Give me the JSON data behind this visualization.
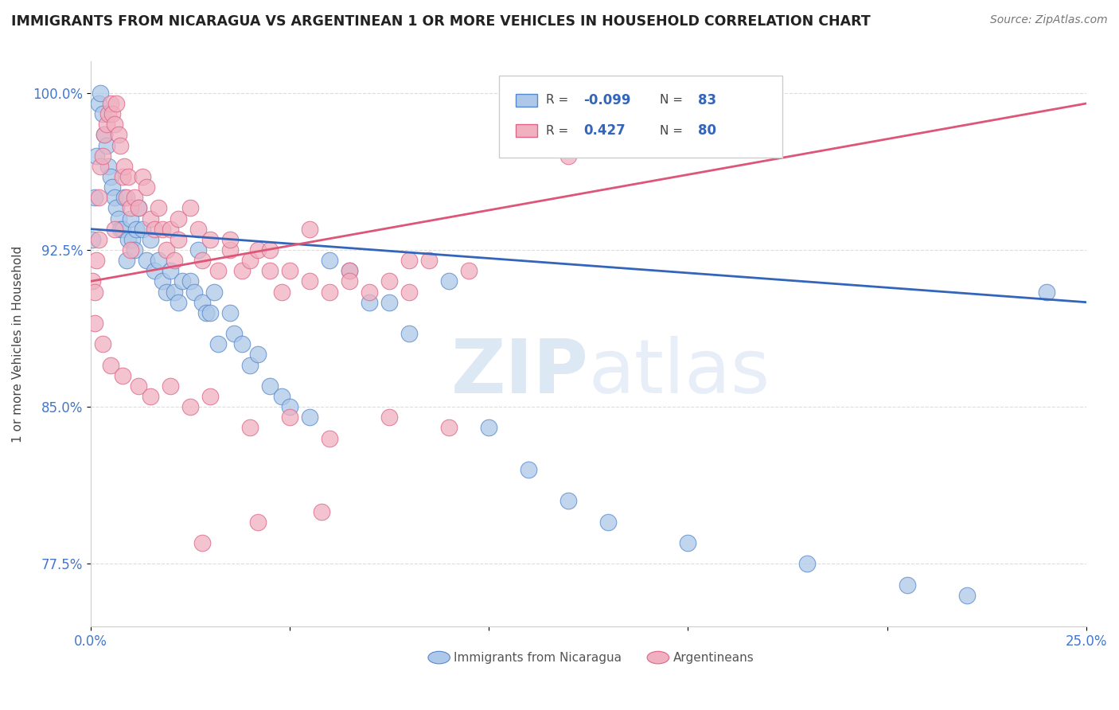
{
  "title": "IMMIGRANTS FROM NICARAGUA VS ARGENTINEAN 1 OR MORE VEHICLES IN HOUSEHOLD CORRELATION CHART",
  "source": "Source: ZipAtlas.com",
  "ylabel": "1 or more Vehicles in Household",
  "xlim": [
    0.0,
    25.0
  ],
  "ylim": [
    74.5,
    101.5
  ],
  "yticks": [
    77.5,
    85.0,
    92.5,
    100.0
  ],
  "ytick_labels": [
    "77.5%",
    "85.0%",
    "92.5%",
    "100.0%"
  ],
  "xtick_labels": [
    "0.0%",
    "",
    "",
    "",
    "",
    "25.0%"
  ],
  "blue_label": "Immigrants from Nicaragua",
  "pink_label": "Argentineans",
  "blue_color": "#adc8e8",
  "pink_color": "#f0b0c0",
  "blue_edge_color": "#5588cc",
  "pink_edge_color": "#dd6688",
  "blue_line_color": "#3366bb",
  "pink_line_color": "#dd5577",
  "tick_color": "#4477cc",
  "watermark_color": "#dde8f5",
  "blue_x": [
    0.05,
    0.1,
    0.15,
    0.2,
    0.25,
    0.3,
    0.35,
    0.4,
    0.45,
    0.5,
    0.55,
    0.6,
    0.65,
    0.7,
    0.75,
    0.8,
    0.85,
    0.9,
    0.95,
    1.0,
    1.05,
    1.1,
    1.15,
    1.2,
    1.3,
    1.4,
    1.5,
    1.6,
    1.7,
    1.8,
    1.9,
    2.0,
    2.1,
    2.2,
    2.3,
    2.5,
    2.6,
    2.7,
    2.8,
    2.9,
    3.0,
    3.1,
    3.2,
    3.5,
    3.6,
    3.8,
    4.0,
    4.2,
    4.5,
    4.8,
    5.0,
    5.5,
    6.0,
    6.5,
    7.0,
    7.5,
    8.0,
    9.0,
    10.0,
    11.0,
    12.0,
    13.0,
    15.0,
    18.0,
    20.5,
    22.0,
    24.0
  ],
  "blue_y": [
    93.0,
    95.0,
    97.0,
    99.5,
    100.0,
    99.0,
    98.0,
    97.5,
    96.5,
    96.0,
    95.5,
    95.0,
    94.5,
    94.0,
    93.5,
    93.5,
    95.0,
    92.0,
    93.0,
    94.0,
    93.0,
    92.5,
    93.5,
    94.5,
    93.5,
    92.0,
    93.0,
    91.5,
    92.0,
    91.0,
    90.5,
    91.5,
    90.5,
    90.0,
    91.0,
    91.0,
    90.5,
    92.5,
    90.0,
    89.5,
    89.5,
    90.5,
    88.0,
    89.5,
    88.5,
    88.0,
    87.0,
    87.5,
    86.0,
    85.5,
    85.0,
    84.5,
    92.0,
    91.5,
    90.0,
    90.0,
    88.5,
    91.0,
    84.0,
    82.0,
    80.5,
    79.5,
    78.5,
    77.5,
    76.5,
    76.0,
    90.5
  ],
  "pink_x": [
    0.05,
    0.1,
    0.15,
    0.2,
    0.25,
    0.3,
    0.35,
    0.4,
    0.45,
    0.5,
    0.55,
    0.6,
    0.65,
    0.7,
    0.75,
    0.8,
    0.85,
    0.9,
    0.95,
    1.0,
    1.1,
    1.2,
    1.3,
    1.4,
    1.5,
    1.6,
    1.7,
    1.8,
    1.9,
    2.0,
    2.1,
    2.2,
    2.5,
    2.7,
    2.8,
    3.0,
    3.2,
    3.5,
    3.8,
    4.0,
    4.2,
    4.5,
    4.8,
    5.0,
    5.5,
    6.0,
    6.5,
    7.0,
    7.5,
    8.0,
    8.5,
    9.5,
    0.1,
    0.3,
    0.5,
    0.8,
    1.2,
    1.5,
    2.0,
    2.5,
    3.0,
    4.0,
    5.0,
    6.0,
    7.5,
    9.0,
    12.0,
    0.2,
    0.6,
    1.0,
    2.2,
    3.5,
    4.5,
    5.5,
    6.5,
    8.0,
    2.8,
    4.2,
    5.8
  ],
  "pink_y": [
    91.0,
    90.5,
    92.0,
    95.0,
    96.5,
    97.0,
    98.0,
    98.5,
    99.0,
    99.5,
    99.0,
    98.5,
    99.5,
    98.0,
    97.5,
    96.0,
    96.5,
    95.0,
    96.0,
    94.5,
    95.0,
    94.5,
    96.0,
    95.5,
    94.0,
    93.5,
    94.5,
    93.5,
    92.5,
    93.5,
    92.0,
    93.0,
    94.5,
    93.5,
    92.0,
    93.0,
    91.5,
    92.5,
    91.5,
    92.0,
    92.5,
    91.5,
    90.5,
    91.5,
    91.0,
    90.5,
    91.5,
    90.5,
    91.0,
    90.5,
    92.0,
    91.5,
    89.0,
    88.0,
    87.0,
    86.5,
    86.0,
    85.5,
    86.0,
    85.0,
    85.5,
    84.0,
    84.5,
    83.5,
    84.5,
    84.0,
    97.0,
    93.0,
    93.5,
    92.5,
    94.0,
    93.0,
    92.5,
    93.5,
    91.0,
    92.0,
    78.5,
    79.5,
    80.0
  ]
}
